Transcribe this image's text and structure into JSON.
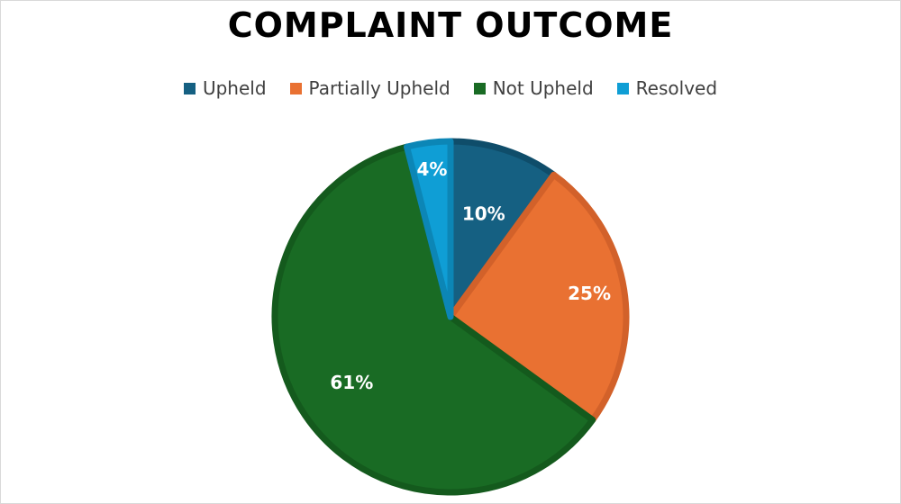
{
  "chart_data": {
    "type": "pie",
    "title": "COMPLAINT OUTCOME",
    "legend_position": "top",
    "slices": [
      {
        "name": "Upheld",
        "value": 10,
        "label": "10%",
        "color": "#156082",
        "edge": "#0f4d6a"
      },
      {
        "name": "Partially Upheld",
        "value": 25,
        "label": "25%",
        "color": "#e97132",
        "edge": "#d2612a"
      },
      {
        "name": "Not Upheld",
        "value": 61,
        "label": "61%",
        "color": "#196b24",
        "edge": "#145a1d"
      },
      {
        "name": "Resolved",
        "value": 4,
        "label": "4%",
        "color": "#0f9ed5",
        "edge": "#0c86b6"
      }
    ]
  }
}
